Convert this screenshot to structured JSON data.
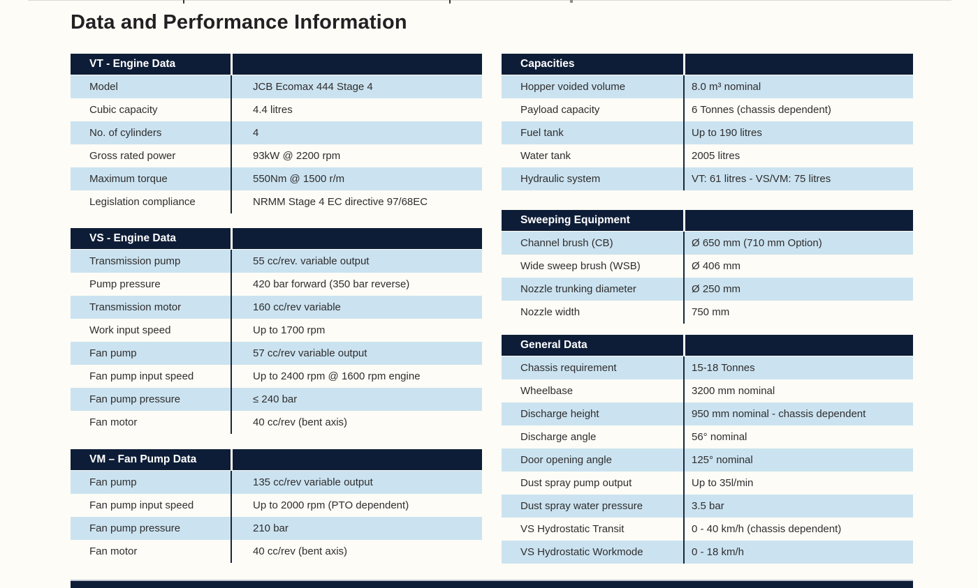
{
  "page_title": "Data and Performance Information",
  "colors": {
    "header_navy": "#0e1d37",
    "row_light_blue": "#cbe3f0",
    "row_white": "#fdfcf6",
    "header_text": "#ffffff",
    "body_text": "#2f2d2e"
  },
  "columns": {
    "left": [
      {
        "header": "VT - Engine Data",
        "rows": [
          {
            "label": "Model",
            "value": "JCB Ecomax 444 Stage 4"
          },
          {
            "label": "Cubic capacity",
            "value": "4.4 litres"
          },
          {
            "label": "No. of cylinders",
            "value": "4"
          },
          {
            "label": "Gross rated power",
            "value": "93kW @ 2200 rpm"
          },
          {
            "label": "Maximum torque",
            "value": "550Nm @ 1500 r/m"
          },
          {
            "label": "Legislation compliance",
            "value": "NRMM Stage 4 EC directive 97/68EC"
          }
        ]
      },
      {
        "header": "VS - Engine Data",
        "rows": [
          {
            "label": "Transmission pump",
            "value": "55 cc/rev. variable output"
          },
          {
            "label": "Pump pressure",
            "value": "420 bar forward (350 bar reverse)"
          },
          {
            "label": "Transmission motor",
            "value": "160 cc/rev variable"
          },
          {
            "label": "Work input speed",
            "value": "Up to 1700 rpm"
          },
          {
            "label": "Fan pump",
            "value": "57 cc/rev variable output"
          },
          {
            "label": "Fan pump input speed",
            "value": "Up to 2400 rpm @ 1600 rpm engine"
          },
          {
            "label": "Fan pump pressure",
            "value": "≤ 240 bar"
          },
          {
            "label": "Fan motor",
            "value": "40 cc/rev (bent axis)"
          }
        ]
      },
      {
        "header": "VM – Fan Pump Data",
        "rows": [
          {
            "label": "Fan pump",
            "value": "135 cc/rev variable output"
          },
          {
            "label": "Fan pump input speed",
            "value": "Up to 2000 rpm (PTO dependent)"
          },
          {
            "label": "Fan pump pressure",
            "value": "210 bar"
          },
          {
            "label": "Fan motor",
            "value": "40 cc/rev (bent axis)"
          }
        ]
      }
    ],
    "right": [
      {
        "header": "Capacities",
        "rows": [
          {
            "label": "Hopper voided volume",
            "value": "8.0 m³ nominal"
          },
          {
            "label": "Payload capacity",
            "value": "6 Tonnes (chassis dependent)"
          },
          {
            "label": "Fuel tank",
            "value": "Up to 190 litres"
          },
          {
            "label": "Water tank",
            "value": "2005 litres"
          },
          {
            "label": "Hydraulic system",
            "value": "VT: 61 litres - VS/VM: 75 litres"
          }
        ]
      },
      {
        "header": "Sweeping Equipment",
        "rows": [
          {
            "label": "Channel brush (CB)",
            "value": "Ø 650 mm (710 mm Option)"
          },
          {
            "label": "Wide sweep brush (WSB)",
            "value": "Ø 406 mm"
          },
          {
            "label": "Nozzle trunking diameter",
            "value": "Ø 250 mm"
          },
          {
            "label": "Nozzle width",
            "value": "750 mm"
          }
        ]
      },
      {
        "header": "General Data",
        "rows": [
          {
            "label": "Chassis requirement",
            "value": "15-18 Tonnes"
          },
          {
            "label": "Wheelbase",
            "value": "3200 mm nominal"
          },
          {
            "label": "Discharge height",
            "value": "950 mm nominal - chassis dependent"
          },
          {
            "label": "Discharge angle",
            "value": "56° nominal"
          },
          {
            "label": "Door opening angle",
            "value": "125° nominal"
          },
          {
            "label": "Dust spray pump output",
            "value": "Up to 35l/min"
          },
          {
            "label": "Dust spray water pressure",
            "value": "3.5 bar"
          },
          {
            "label": "VS Hydrostatic Transit",
            "value": "0 - 40 km/h (chassis dependent)"
          },
          {
            "label": "VS Hydrostatic Workmode",
            "value": "0 - 18 km/h"
          }
        ]
      }
    ]
  }
}
